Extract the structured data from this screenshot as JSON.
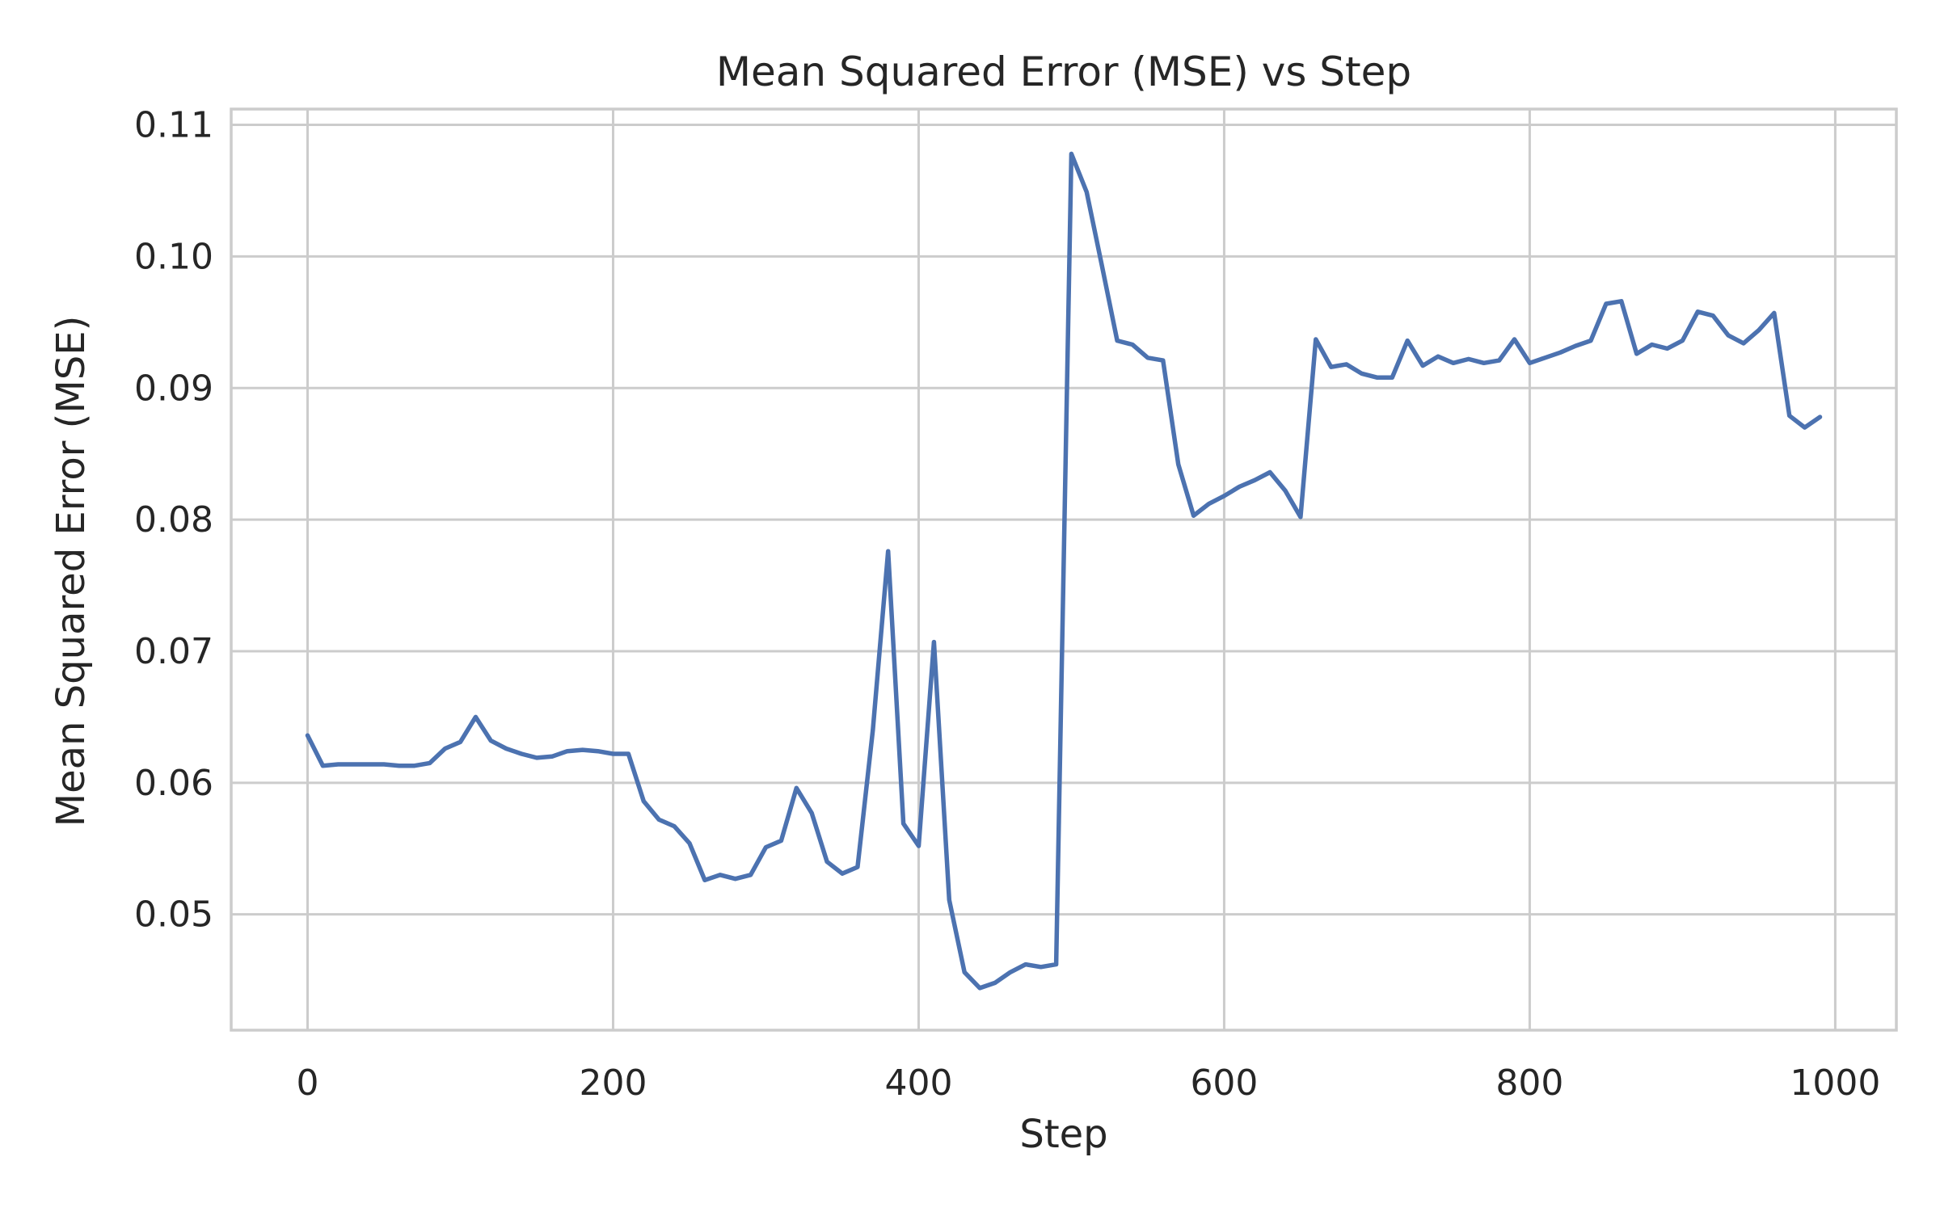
{
  "chart_data": {
    "type": "line",
    "title": "Mean Squared Error (MSE) vs Step",
    "xlabel": "Step",
    "ylabel": "Mean Squared Error (MSE)",
    "xlim": [
      -50,
      1040
    ],
    "ylim": [
      0.0412,
      0.1112
    ],
    "xticks": [
      0,
      200,
      400,
      600,
      800,
      1000
    ],
    "xtick_labels": [
      "0",
      "200",
      "400",
      "600",
      "800",
      "1000"
    ],
    "yticks": [
      0.05,
      0.06,
      0.07,
      0.08,
      0.09,
      0.1,
      0.11
    ],
    "ytick_labels": [
      "0.05",
      "0.06",
      "0.07",
      "0.08",
      "0.09",
      "0.10",
      "0.11"
    ],
    "grid": true,
    "line_color": "#4c72b0",
    "series": [
      {
        "x": [
          0,
          10,
          20,
          30,
          40,
          50,
          60,
          70,
          80,
          90,
          100,
          110,
          120,
          130,
          140,
          150,
          160,
          170,
          180,
          190,
          200,
          210,
          220,
          230,
          240,
          250,
          260,
          270,
          280,
          290,
          300,
          310,
          320,
          330,
          340,
          350,
          360,
          370,
          380,
          390,
          400,
          410,
          420,
          430,
          440,
          450,
          460,
          470,
          480,
          490,
          500,
          510,
          520,
          530,
          540,
          550,
          560,
          570,
          580,
          590,
          600,
          610,
          620,
          630,
          640,
          650,
          660,
          670,
          680,
          690,
          700,
          710,
          720,
          730,
          740,
          750,
          760,
          770,
          780,
          790,
          800,
          810,
          820,
          830,
          840,
          850,
          860,
          870,
          880,
          890,
          900,
          910,
          920,
          930,
          940,
          950,
          960,
          970,
          980,
          990
        ],
        "values": [
          0.0636,
          0.0613,
          0.0614,
          0.0614,
          0.0614,
          0.0614,
          0.0613,
          0.0613,
          0.0615,
          0.0626,
          0.0631,
          0.065,
          0.0632,
          0.0626,
          0.0622,
          0.0619,
          0.062,
          0.0624,
          0.0625,
          0.0624,
          0.0622,
          0.0622,
          0.0586,
          0.0572,
          0.0567,
          0.0554,
          0.0526,
          0.053,
          0.0527,
          0.053,
          0.0551,
          0.0556,
          0.0596,
          0.0577,
          0.054,
          0.0531,
          0.0536,
          0.064,
          0.0776,
          0.0569,
          0.0552,
          0.0707,
          0.0511,
          0.0456,
          0.0444,
          0.0448,
          0.0456,
          0.0462,
          0.046,
          0.0462,
          0.1078,
          0.1049,
          0.0993,
          0.0936,
          0.0933,
          0.0923,
          0.0921,
          0.0842,
          0.0803,
          0.0812,
          0.0818,
          0.0825,
          0.083,
          0.0836,
          0.0822,
          0.0802,
          0.0937,
          0.0916,
          0.0918,
          0.0911,
          0.0908,
          0.0908,
          0.0936,
          0.0917,
          0.0924,
          0.0919,
          0.0922,
          0.0919,
          0.0921,
          0.0937,
          0.0919,
          0.0923,
          0.0927,
          0.0932,
          0.0936,
          0.0964,
          0.0966,
          0.0926,
          0.0933,
          0.093,
          0.0936,
          0.0958,
          0.0955,
          0.094,
          0.0934,
          0.0944,
          0.0957,
          0.0879,
          0.087,
          0.0878
        ]
      }
    ]
  }
}
